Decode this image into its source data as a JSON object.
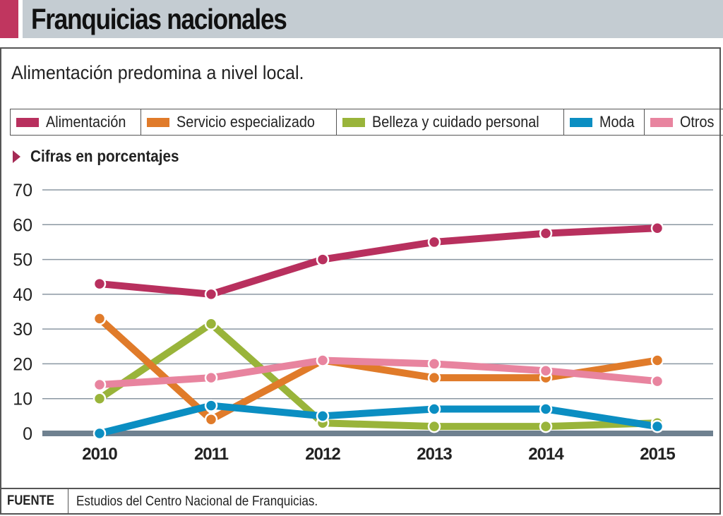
{
  "header": {
    "title": "Franquicias nacionales",
    "accent_color": "#c0365f",
    "bar_color": "#c4ccd2"
  },
  "subtitle": "Alimentación predomina a nivel local.",
  "unit_label": "Cifras en porcentajes",
  "legend": [
    {
      "label": "Alimentación",
      "color": "#b8305e"
    },
    {
      "label": "Servicio especializado",
      "color": "#e07b2a"
    },
    {
      "label": "Belleza y cuidado personal",
      "color": "#99b43a"
    },
    {
      "label": "Moda",
      "color": "#0b8ec2"
    },
    {
      "label": "Otros",
      "color": "#e8849f"
    }
  ],
  "footer": {
    "label": "FUENTE",
    "source": "Estudios del Centro Nacional de Franquicias."
  },
  "chart_data": {
    "type": "line",
    "title": "Franquicias nacionales",
    "subtitle": "Alimentación predomina a nivel local.",
    "ylabel": "Cifras en porcentajes",
    "xlabel": "",
    "x": [
      "2010",
      "2011",
      "2012",
      "2013",
      "2014",
      "2015"
    ],
    "ylim": [
      0,
      70
    ],
    "yticks": [
      0,
      10,
      20,
      30,
      40,
      50,
      60,
      70
    ],
    "grid": true,
    "legend_position": "top",
    "series": [
      {
        "name": "Alimentación",
        "color": "#b8305e",
        "values": [
          43,
          40,
          50,
          55,
          57.5,
          59
        ]
      },
      {
        "name": "Servicio especializado",
        "color": "#e07b2a",
        "values": [
          33,
          4,
          21,
          16,
          16,
          21
        ]
      },
      {
        "name": "Belleza y cuidado personal",
        "color": "#99b43a",
        "values": [
          10,
          31.5,
          3,
          2,
          2,
          3
        ]
      },
      {
        "name": "Moda",
        "color": "#0b8ec2",
        "values": [
          0,
          8,
          5,
          7,
          7,
          2
        ]
      },
      {
        "name": "Otros",
        "color": "#e8849f",
        "values": [
          14,
          16,
          21,
          20,
          18,
          15
        ]
      }
    ]
  }
}
